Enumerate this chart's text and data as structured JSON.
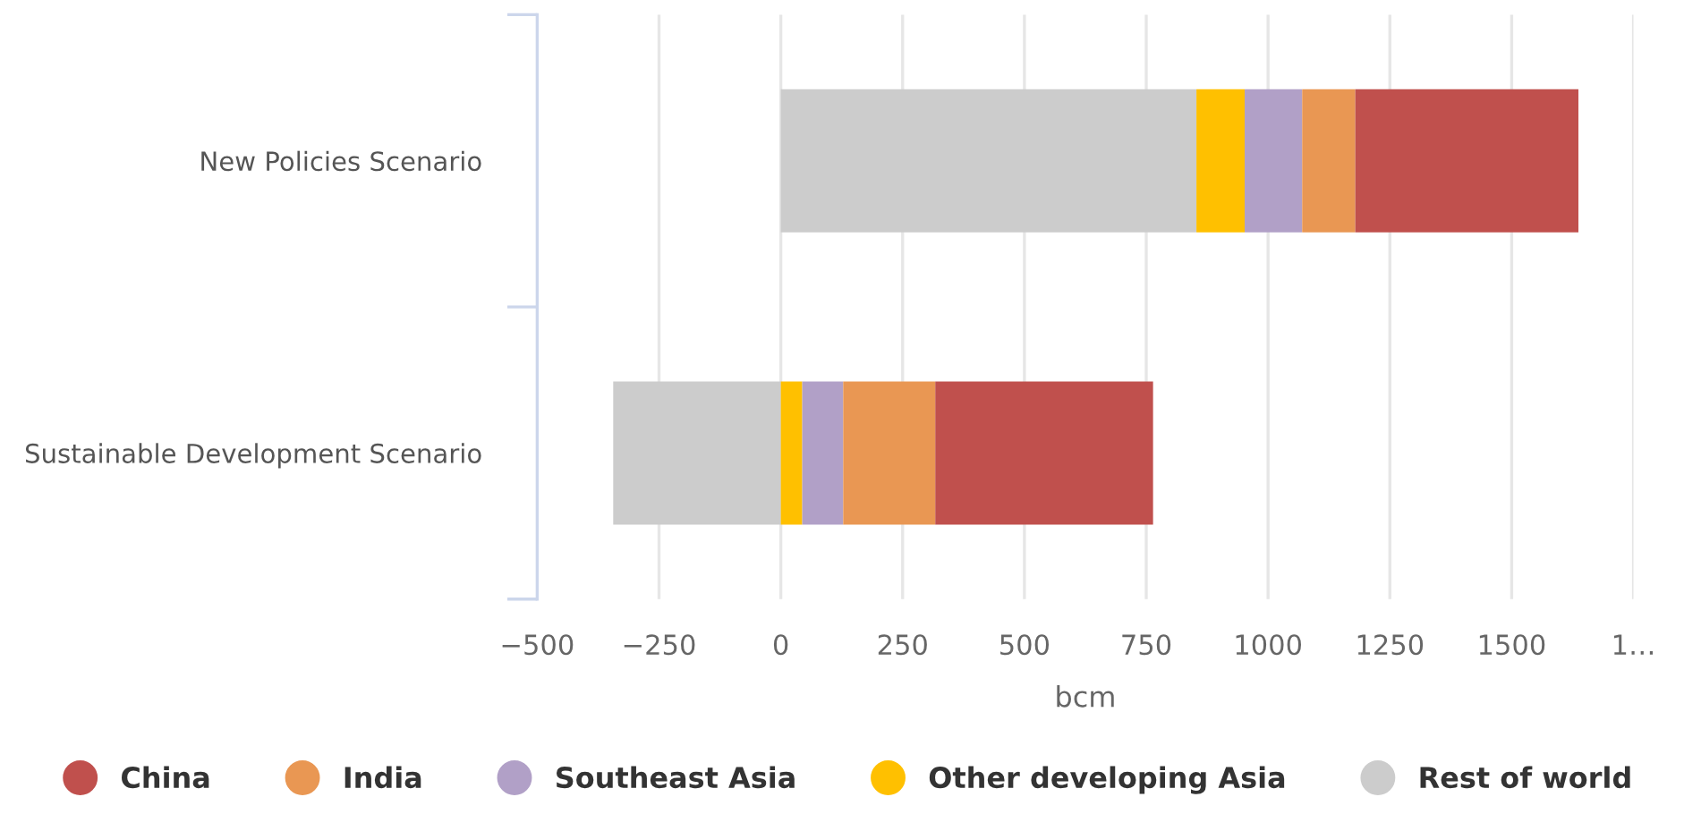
{
  "chart_data": {
    "type": "bar",
    "orientation": "horizontal",
    "stacked": true,
    "xlabel": "bcm",
    "categories": [
      "New Policies Scenario",
      "Sustainable Development Scenario"
    ],
    "series": [
      {
        "name": "Rest of world",
        "color": "#cccccc",
        "values": [
          853,
          -344
        ]
      },
      {
        "name": "Other developing Asia",
        "color": "#ffc000",
        "values": [
          99,
          44
        ]
      },
      {
        "name": "Southeast Asia",
        "color": "#b1a0c7",
        "values": [
          118,
          84
        ]
      },
      {
        "name": "India",
        "color": "#e99753",
        "values": [
          109,
          189
        ]
      },
      {
        "name": "China",
        "color": "#c0504d",
        "values": [
          458,
          447
        ]
      }
    ],
    "xlim": [
      -500,
      1750
    ],
    "xticks": [
      -500,
      -250,
      0,
      250,
      500,
      750,
      1000,
      1250,
      1500,
      {
        "value": 1750,
        "label": "1…"
      }
    ],
    "grid": "x",
    "legend": "bottom"
  }
}
